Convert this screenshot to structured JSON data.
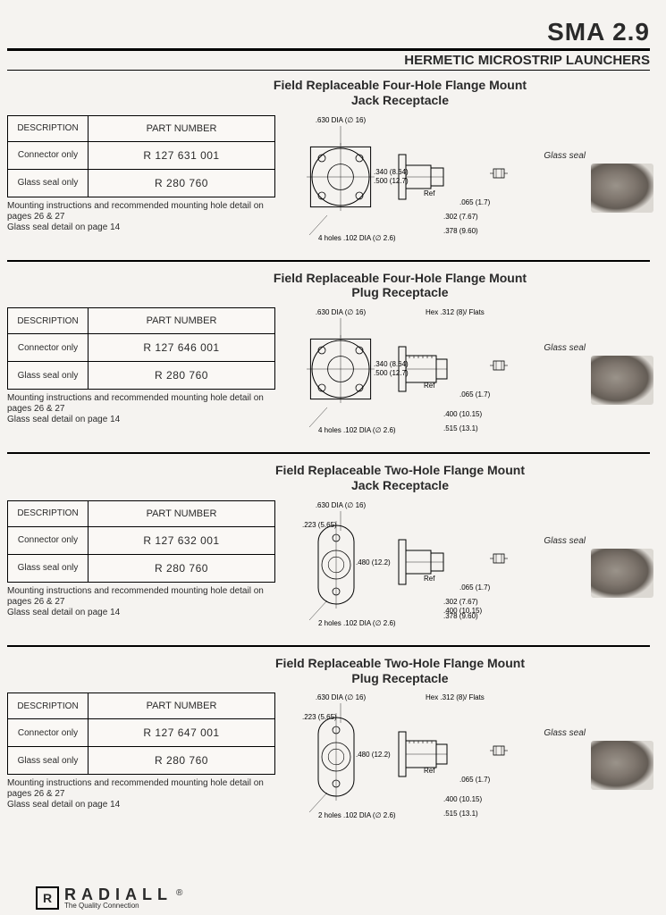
{
  "header": {
    "title": "SMA 2.9",
    "subtitle": "HERMETIC MICROSTRIP LAUNCHERS"
  },
  "sections": [
    {
      "title_line1": "Field Replaceable Four-Hole Flange Mount",
      "title_line2": "Jack Receptacle",
      "desc_header": "DESCRIPTION",
      "pn_header": "PART NUMBER",
      "rows": [
        {
          "desc": "Connector only",
          "pn": "R 127 631 001"
        },
        {
          "desc": "Glass seal only",
          "pn": "R 280 760"
        }
      ],
      "note": "Mounting instructions and recommended mounting hole detail on pages 26 & 27\nGlass seal detail on page 14",
      "glass_label": "Glass seal",
      "dims": {
        "dia": ".630 DIA (∅ 16)",
        "w1": ".340 (8.64)",
        "w2": ".500 (12.7)",
        "holes": "4 holes .102 DIA (∅ 2.6)",
        "ref": "Ref",
        "d1": ".065 (1.7)",
        "d2": ".302 (7.67)",
        "d3": ".378 (9.60)"
      }
    },
    {
      "title_line1": "Field Replaceable Four-Hole Flange Mount",
      "title_line2": "Plug Receptacle",
      "desc_header": "DESCRIPTION",
      "pn_header": "PART NUMBER",
      "rows": [
        {
          "desc": "Connector only",
          "pn": "R 127 646 001"
        },
        {
          "desc": "Glass seal only",
          "pn": "R 280 760"
        }
      ],
      "note": "Mounting instructions and recommended mounting hole detail on pages 26 & 27\nGlass seal detail on page 14",
      "glass_label": "Glass seal",
      "dims": {
        "dia": ".630 DIA (∅ 16)",
        "hex": "Hex .312 (8)/ Flats",
        "w1": ".340 (8.64)",
        "w2": ".500 (12.7)",
        "holes": "4 holes .102 DIA (∅ 2.6)",
        "ref": "Ref",
        "d1": ".065 (1.7)",
        "d2": ".400 (10.15)",
        "d3": ".515 (13.1)"
      }
    },
    {
      "title_line1": "Field Replaceable Two-Hole Flange Mount",
      "title_line2": "Jack Receptacle",
      "desc_header": "DESCRIPTION",
      "pn_header": "PART NUMBER",
      "rows": [
        {
          "desc": "Connector only",
          "pn": "R 127 632 001"
        },
        {
          "desc": "Glass seal only",
          "pn": "R 280 760"
        }
      ],
      "note": "Mounting instructions and recommended mounting hole detail on pages 26 & 27\nGlass seal detail on page 14",
      "glass_label": "Glass seal",
      "dims": {
        "dia": ".630 DIA (∅ 16)",
        "holes": "2 holes .102 DIA (∅ 2.6)",
        "w1": ".223 (5.65)",
        "w2": ".480 (12.2)",
        "ref": "Ref",
        "d1": ".065 (1.7)",
        "d2": ".302 (7.67)",
        "d2b": ".400 (10.15)",
        "d3": ".378 (9.60)"
      }
    },
    {
      "title_line1": "Field Replaceable Two-Hole Flange Mount",
      "title_line2": "Plug Receptacle",
      "desc_header": "DESCRIPTION",
      "pn_header": "PART NUMBER",
      "rows": [
        {
          "desc": "Connector only",
          "pn": "R 127 647 001"
        },
        {
          "desc": "Glass seal only",
          "pn": "R 280 760"
        }
      ],
      "note": "Mounting instructions and recommended mounting hole detail on pages 26 & 27\nGlass seal detail on page 14",
      "glass_label": "Glass seal",
      "dims": {
        "dia": ".630 DIA (∅ 16)",
        "hex": "Hex .312 (8)/ Flats",
        "holes": "2 holes .102 DIA (∅ 2.6)",
        "w1": ".223 (5.65)",
        "w2": ".480 (12.2)",
        "ref": "Ref",
        "d1": ".065 (1.7)",
        "d2": ".400 (10.15)",
        "d3": ".515 (13.1)"
      }
    }
  ],
  "footer": {
    "brand": "RADIALL",
    "tagline": "The Quality Connection",
    "logo_char": "R",
    "reg": "®"
  },
  "colors": {
    "bg": "#f5f3f0",
    "ink": "#2a2a2a",
    "rule": "#000000"
  }
}
